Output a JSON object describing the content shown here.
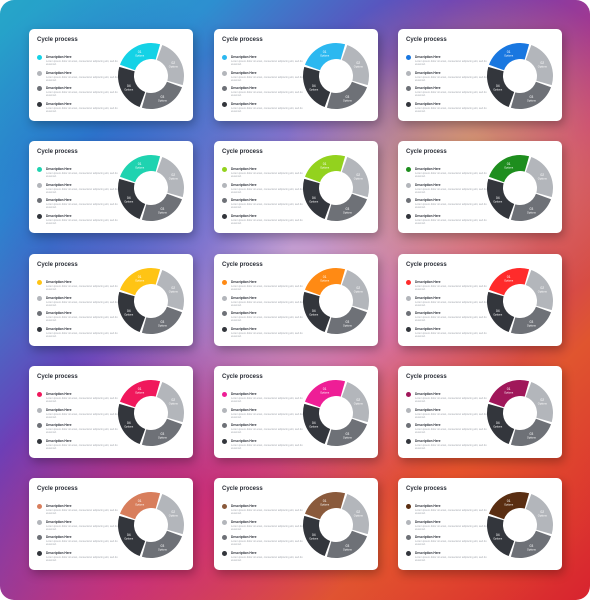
{
  "card_template": {
    "title": "Cycle process",
    "items": [
      {
        "title": "Description Here",
        "text": "Lorem ipsum dolor sit amet, consectetur adipiscing elit, sed do eiusmod."
      },
      {
        "title": "Description Here",
        "text": "Lorem ipsum dolor sit amet, consectetur adipiscing elit, sed do eiusmod."
      },
      {
        "title": "Description Here",
        "text": "Lorem ipsum dolor sit amet, consectetur adipiscing elit, sed do eiusmod."
      },
      {
        "title": "Description Here",
        "text": "Lorem ipsum dolor sit amet, consectetur adipiscing elit, sed do eiusmod."
      }
    ],
    "segments": [
      {
        "num": "01",
        "sub": "Options"
      },
      {
        "num": "02",
        "sub": "Options"
      },
      {
        "num": "03",
        "sub": "Options"
      },
      {
        "num": "04",
        "sub": "Options"
      }
    ],
    "neutral_colors": [
      "#b3b6bb",
      "#6e7177",
      "#33363c"
    ]
  },
  "accent_colors": [
    "#14d2e6",
    "#2cb8f0",
    "#1977e0",
    "#1fd3b0",
    "#93d21e",
    "#1e8e1e",
    "#ffc414",
    "#ff8a14",
    "#ff2b2b",
    "#f0185c",
    "#ee1e96",
    "#a0175a",
    "#d87e5c",
    "#8a5a3c",
    "#5a2e12"
  ]
}
